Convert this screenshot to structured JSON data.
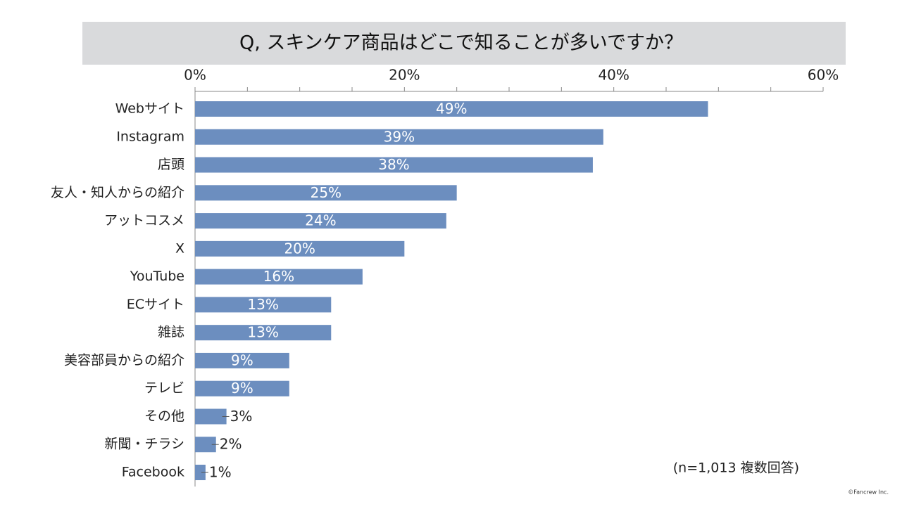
{
  "chart_data": {
    "type": "bar",
    "orientation": "horizontal",
    "title": "Q, スキンケア商品はどこで知ることが多いですか？",
    "categories": [
      "Webサイト",
      "Instagram",
      "店頭",
      "友人・知人からの紹介",
      "アットコスメ",
      "X",
      "YouTube",
      "ECサイト",
      "雑誌",
      "美容部員からの紹介",
      "テレビ",
      "その他",
      "新聞・チラシ",
      "Facebook"
    ],
    "values": [
      49,
      39,
      38,
      25,
      24,
      20,
      16,
      13,
      13,
      9,
      9,
      3,
      2,
      1
    ],
    "value_labels": [
      "49%",
      "39%",
      "38%",
      "25%",
      "24%",
      "20%",
      "16%",
      "13%",
      "13%",
      "9%",
      "9%",
      "3%",
      "2%",
      "1%"
    ],
    "color": "#6c8ebf",
    "xlim": [
      0,
      60
    ],
    "xticks": [
      {
        "value": 0,
        "label": "0%"
      },
      {
        "value": 20,
        "label": "20%"
      },
      {
        "value": 40,
        "label": "40%"
      },
      {
        "value": 60,
        "label": "60%"
      }
    ],
    "minor_xticks": [
      5,
      10,
      15,
      25,
      30,
      35,
      45,
      50,
      55
    ],
    "note": "(n=1,013 複数回答)",
    "credit": "©Fancrew Inc."
  }
}
